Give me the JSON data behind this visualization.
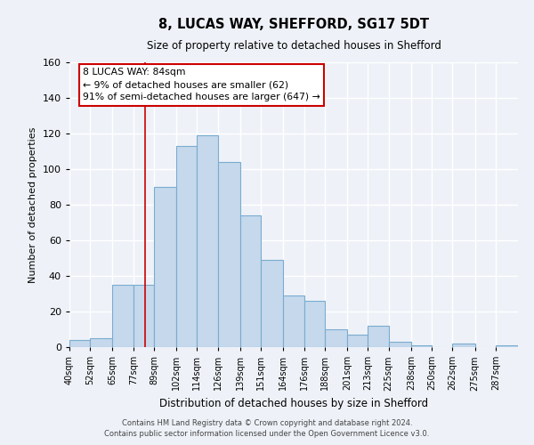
{
  "title": "8, LUCAS WAY, SHEFFORD, SG17 5DT",
  "subtitle": "Size of property relative to detached houses in Shefford",
  "xlabel": "Distribution of detached houses by size in Shefford",
  "ylabel": "Number of detached properties",
  "bar_color": "#c5d8ec",
  "bar_edge_color": "#7aaccf",
  "bin_edges": [
    40,
    52,
    65,
    77,
    89,
    102,
    114,
    126,
    139,
    151,
    164,
    176,
    188,
    201,
    213,
    225,
    238,
    250,
    262,
    275,
    287,
    300
  ],
  "bin_labels": [
    "40sqm",
    "52sqm",
    "65sqm",
    "77sqm",
    "89sqm",
    "102sqm",
    "114sqm",
    "126sqm",
    "139sqm",
    "151sqm",
    "164sqm",
    "176sqm",
    "188sqm",
    "201sqm",
    "213sqm",
    "225sqm",
    "238sqm",
    "250sqm",
    "262sqm",
    "275sqm",
    "287sqm"
  ],
  "counts": [
    4,
    5,
    35,
    35,
    90,
    113,
    119,
    104,
    74,
    49,
    29,
    26,
    10,
    7,
    12,
    3,
    1,
    0,
    2,
    0,
    1
  ],
  "ylim": [
    0,
    160
  ],
  "yticks": [
    0,
    20,
    40,
    60,
    80,
    100,
    120,
    140,
    160
  ],
  "property_line_x": 84,
  "property_line_color": "#cc0000",
  "annotation_title": "8 LUCAS WAY: 84sqm",
  "annotation_line1": "← 9% of detached houses are smaller (62)",
  "annotation_line2": "91% of semi-detached houses are larger (647) →",
  "annotation_box_color": "#ffffff",
  "annotation_box_edge": "#cc0000",
  "footer_line1": "Contains HM Land Registry data © Crown copyright and database right 2024.",
  "footer_line2": "Contains public sector information licensed under the Open Government Licence v3.0.",
  "background_color": "#eef2f8",
  "grid_color": "#ffffff",
  "grid_linewidth": 1.0
}
